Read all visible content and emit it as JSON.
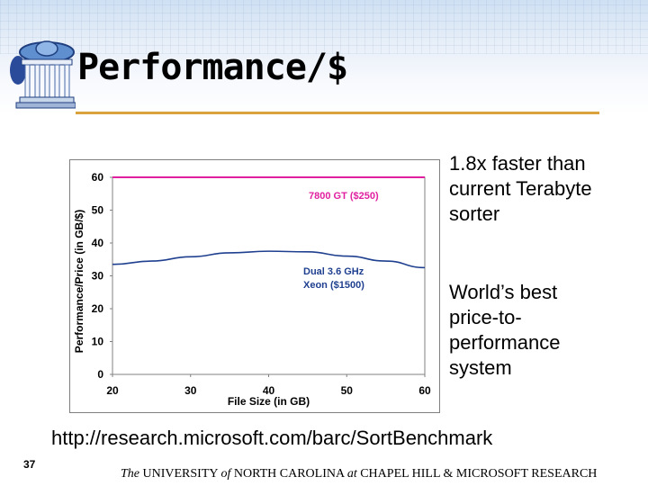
{
  "slide": {
    "title": "Performance/$",
    "side_text_1": "1.8x faster than current Terabyte sorter",
    "side_text_2": "World’s best price-to-performance system",
    "url": "http://research.microsoft.com/barc/SortBenchmark",
    "slide_number": "37",
    "footer": {
      "the": "The",
      "university": " UNIVERSITY ",
      "of": "of",
      "north_carolina": " NORTH CAROLINA ",
      "at": "at",
      "rest": " CHAPEL HILL & MICROSOFT RESEARCH"
    },
    "logo_icon": "old-well-icon",
    "colors": {
      "title_rule": "#d9a23c",
      "series_gpu": "#e020a0",
      "series_cpu": "#1f3f8f"
    }
  },
  "chart_data": {
    "type": "line",
    "title": "",
    "xlabel": "File Size (in GB)",
    "ylabel": "Performance/Price (in GB/$)",
    "xlim": [
      20,
      60
    ],
    "ylim": [
      0,
      60
    ],
    "xticks": [
      "20",
      "30",
      "40",
      "50",
      "60"
    ],
    "yticks": [
      "0",
      "10",
      "20",
      "30",
      "40",
      "50",
      "60"
    ],
    "grid": false,
    "series": [
      {
        "name": "7800 GT ($250)",
        "color": "#e020a0",
        "x": [
          20,
          25,
          30,
          35,
          40,
          45,
          50,
          55,
          60
        ],
        "values": [
          60,
          60,
          60,
          60,
          60,
          60,
          60,
          60,
          60
        ]
      },
      {
        "name": "Dual 3.6 GHz Xeon ($1500)",
        "color": "#1f3f8f",
        "x": [
          20,
          25,
          30,
          35,
          40,
          45,
          50,
          55,
          60
        ],
        "values": [
          33.5,
          34.5,
          35.8,
          37.0,
          37.5,
          37.3,
          36.0,
          34.5,
          32.5
        ]
      }
    ]
  }
}
